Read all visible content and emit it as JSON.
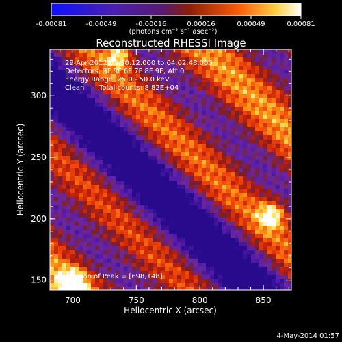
{
  "chart_data": {
    "type": "heatmap",
    "title": "Reconstructed RHESSI Image",
    "xlabel": "Heliocentric X (arcsec)",
    "ylabel": "Heliocentric Y (arcsec)",
    "xlim": [
      682,
      872
    ],
    "ylim": [
      142,
      338
    ],
    "x_ticks": [
      700,
      750,
      800,
      850
    ],
    "y_ticks": [
      150,
      200,
      250,
      300
    ],
    "colorbar": {
      "range": [
        -0.00081,
        0.00081
      ],
      "ticks": [
        "-0.00081",
        "-0.00049",
        "-0.00016",
        "0.00016",
        "0.00049",
        "0.00081"
      ],
      "unit_label": "(photons cm⁻² s⁻¹ asec⁻²)",
      "colors": [
        "#1010ff",
        "#5a1a9c",
        "#7a2d1a",
        "#d8240a",
        "#ff8c10",
        "#ffffff"
      ]
    },
    "annotations": {
      "time_range": "29-Apr-2012 03:50:12.000 to 04:02:48.000",
      "detectors": "Detectors: 3F 5F 6F 7F 8F 9F, Att 0",
      "energy_range": "Energy Range: 25.0 - 50.0 keV",
      "clean": "Clean",
      "total_counts": "Total counts: 8.82E+04",
      "peak": "Position of Peak = [698,148]"
    },
    "peak_position": [
      698,
      148
    ],
    "footer_date": "4-May-2014 01:57"
  }
}
